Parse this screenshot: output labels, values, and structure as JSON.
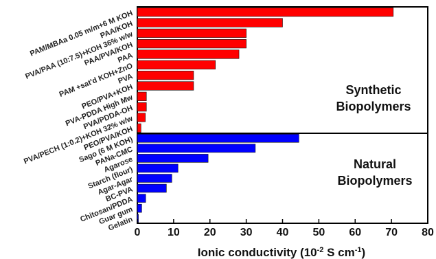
{
  "chart_data": {
    "type": "bar",
    "orientation": "horizontal",
    "xlabel": "Ionic conductivity (10",
    "xlabel_exp1": "-2",
    "xlabel_mid": " S cm",
    "xlabel_exp2": "-1",
    "xlabel_end": ")",
    "xlim": [
      0,
      80
    ],
    "xticks": [
      "0",
      "10",
      "20",
      "30",
      "40",
      "50",
      "60",
      "70",
      "80"
    ],
    "grid": false,
    "series": [
      {
        "group": "synthetic",
        "color": "#ff0000",
        "label_line1": "Synthetic",
        "label_line2": "Biopolymers",
        "categories": [
          "PAM/MBAa 0.05 m/m+6 M KOH",
          "PAA/KOH",
          "PVA/PAA (10:7.5)+KOH 36% w/w",
          "PAA/PVA/KOH",
          "PAA",
          "PAM +sat'd KOH+ZnO",
          "PVA",
          "PEO/PVA+KOH",
          "PVA-PDDA High Mw",
          "PVA/PDDA-OH",
          "PVA/PECH (1:0.2)+KOH 32% w/w",
          "PEO/PVA/KOH"
        ],
        "values": [
          70.5,
          40,
          30,
          30,
          28,
          21.5,
          15.5,
          15.5,
          2.5,
          2.5,
          2.2,
          1
        ]
      },
      {
        "group": "natural",
        "color": "#0000ff",
        "label_line1": "Natural",
        "label_line2": "Biopolymers",
        "categories": [
          "Sago (6 M KOH)",
          "PANa-CMC",
          "Agarose",
          "Starch (flour)",
          "Agar-Agar",
          "BC-PVA",
          "Chitosan/PDDA",
          "Guar gum",
          "Gelatin"
        ],
        "values": [
          44.5,
          32.5,
          19.5,
          11.2,
          9.5,
          8,
          2.3,
          1.2,
          0.3
        ]
      }
    ]
  }
}
